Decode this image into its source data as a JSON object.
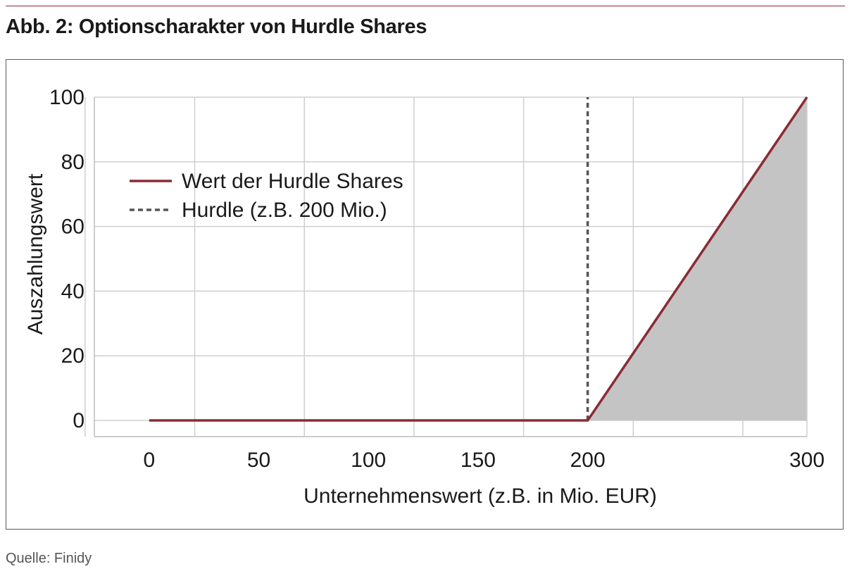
{
  "figure": {
    "title": "Abb. 2: Optionscharakter von Hurdle Shares",
    "source": "Quelle: Finidy"
  },
  "chart_data": {
    "type": "line",
    "xlabel": "Unternehmenswert (z.B. in Mio. EUR)",
    "ylabel": "Auszahlungswert",
    "xlim": [
      -25,
      300
    ],
    "ylim": [
      -5,
      100
    ],
    "x_ticks": [
      0,
      50,
      100,
      150,
      200,
      300
    ],
    "y_ticks": [
      0,
      20,
      40,
      60,
      80,
      100
    ],
    "grid": true,
    "legend_position": "top-left",
    "series": [
      {
        "name": "Wert der Hurdle Shares",
        "style": "solid",
        "color": "#8a2b35",
        "x": [
          0,
          200,
          300
        ],
        "y": [
          0,
          0,
          100
        ]
      },
      {
        "name": "Hurdle (z.B. 200 Mio.)",
        "style": "dashed",
        "color": "#555555",
        "x": [
          200,
          200
        ],
        "y": [
          0,
          100
        ]
      }
    ],
    "shaded_region": {
      "color": "#c4c4c4",
      "x": [
        200,
        300,
        300
      ],
      "y": [
        0,
        100,
        0
      ]
    }
  }
}
